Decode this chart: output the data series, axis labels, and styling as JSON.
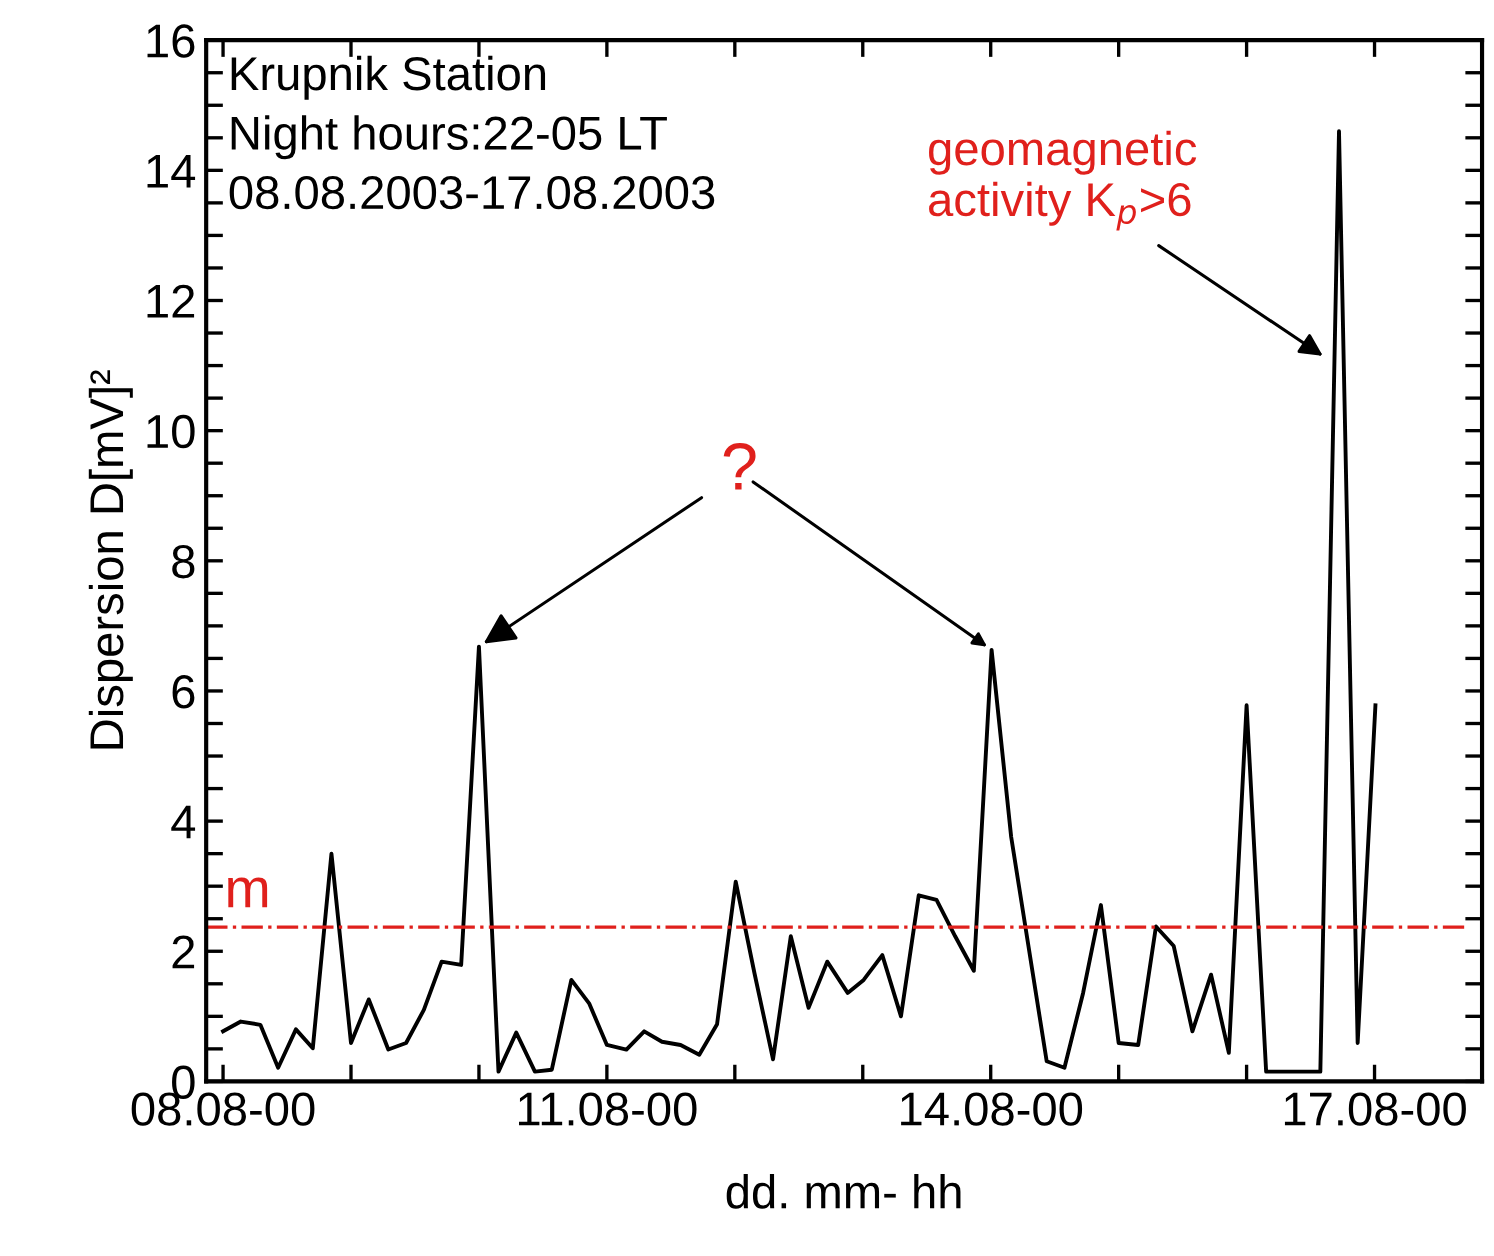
{
  "chart_data": {
    "type": "line",
    "xlabel": "dd. mm- hh",
    "ylabel": "Dispersion D[mV]²",
    "x": [
      "2003-08-08T00:00",
      "2003-08-08T03:20",
      "2003-08-08T07:00",
      "2003-08-08T10:20",
      "2003-08-08T13:40",
      "2003-08-08T16:50",
      "2003-08-08T20:20",
      "2003-08-09T00:00",
      "2003-08-09T03:20",
      "2003-08-09T07:00",
      "2003-08-09T10:20",
      "2003-08-09T13:40",
      "2003-08-09T17:00",
      "2003-08-09T20:40",
      "2003-08-10T00:00",
      "2003-08-10T03:40",
      "2003-08-10T07:00",
      "2003-08-10T10:30",
      "2003-08-10T13:40",
      "2003-08-10T17:20",
      "2003-08-10T20:40",
      "2003-08-11T00:00",
      "2003-08-11T03:40",
      "2003-08-11T07:00",
      "2003-08-11T10:20",
      "2003-08-11T13:50",
      "2003-08-11T17:20",
      "2003-08-11T20:40",
      "2003-08-12T00:10",
      "2003-08-12T03:40",
      "2003-08-12T07:10",
      "2003-08-12T10:30",
      "2003-08-12T13:50",
      "2003-08-12T17:20",
      "2003-08-12T21:10",
      "2003-08-13T00:10",
      "2003-08-13T03:40",
      "2003-08-13T07:10",
      "2003-08-13T10:30",
      "2003-08-13T13:50",
      "2003-08-13T17:20",
      "2003-08-13T20:50",
      "2003-08-14T00:10",
      "2003-08-14T03:50",
      "2003-08-14T10:30",
      "2003-08-14T13:50",
      "2003-08-14T17:20",
      "2003-08-14T20:40",
      "2003-08-15T00:00",
      "2003-08-15T03:40",
      "2003-08-15T07:00",
      "2003-08-15T10:20",
      "2003-08-15T13:50",
      "2003-08-15T17:20",
      "2003-08-15T20:40",
      "2003-08-16T00:00",
      "2003-08-16T03:40",
      "2003-08-16T08:40",
      "2003-08-16T13:50",
      "2003-08-16T17:20",
      "2003-08-16T20:50",
      "2003-08-17T00:10"
    ],
    "series": [
      {
        "color": "#000000",
        "values": [
          0.77,
          0.92,
          0.87,
          0.21,
          0.8,
          0.51,
          3.5,
          0.59,
          1.26,
          0.49,
          0.59,
          1.1,
          1.84,
          1.79,
          6.68,
          0.15,
          0.75,
          0.15,
          0.18,
          1.56,
          1.2,
          0.56,
          0.49,
          0.77,
          0.61,
          0.56,
          0.41,
          0.88,
          3.07,
          1.67,
          0.34,
          2.23,
          1.13,
          1.84,
          1.36,
          1.56,
          1.94,
          1.0,
          2.86,
          2.79,
          2.23,
          1.7,
          6.63,
          3.76,
          0.31,
          0.21,
          1.36,
          2.71,
          0.59,
          0.56,
          2.38,
          2.08,
          0.77,
          1.64,
          0.44,
          5.78,
          0.15,
          0.15,
          0.15,
          14.6,
          0.59,
          5.78
        ]
      }
    ],
    "xlim": [
      "2003-08-07T20:50",
      "2003-08-17T20:10"
    ],
    "xticks": [
      {
        "value": "2003-08-08T00:00",
        "label": "08.08-00"
      },
      {
        "value": "2003-08-09T00:00",
        "label": null
      },
      {
        "value": "2003-08-10T00:00",
        "label": null
      },
      {
        "value": "2003-08-11T00:00",
        "label": "11.08-00"
      },
      {
        "value": "2003-08-12T00:00",
        "label": null
      },
      {
        "value": "2003-08-13T00:00",
        "label": null
      },
      {
        "value": "2003-08-14T00:00",
        "label": "14.08-00"
      },
      {
        "value": "2003-08-15T00:00",
        "label": null
      },
      {
        "value": "2003-08-16T00:00",
        "label": null
      },
      {
        "value": "2003-08-17T00:00",
        "label": "17.08-00"
      }
    ],
    "ylim": [
      0,
      16
    ],
    "yticks": [
      0,
      {
        "value": 0.5,
        "label": null
      },
      {
        "value": 1,
        "label": null
      },
      {
        "value": 1.5,
        "label": null
      },
      2,
      {
        "value": 2.5,
        "label": null
      },
      {
        "value": 3,
        "label": null
      },
      {
        "value": 3.5,
        "label": null
      },
      4,
      {
        "value": 4.5,
        "label": null
      },
      {
        "value": 5,
        "label": null
      },
      {
        "value": 5.5,
        "label": null
      },
      6,
      {
        "value": 6.5,
        "label": null
      },
      {
        "value": 7,
        "label": null
      },
      {
        "value": 7.5,
        "label": null
      },
      8,
      {
        "value": 8.5,
        "label": null
      },
      {
        "value": 9,
        "label": null
      },
      {
        "value": 9.5,
        "label": null
      },
      10,
      {
        "value": 10.5,
        "label": null
      },
      {
        "value": 11,
        "label": null
      },
      {
        "value": 11.5,
        "label": null
      },
      12,
      {
        "value": 12.5,
        "label": null
      },
      {
        "value": 13,
        "label": null
      },
      {
        "value": 13.5,
        "label": null
      },
      14,
      {
        "value": 14.5,
        "label": null
      },
      {
        "value": 15,
        "label": null
      },
      {
        "value": 15.5,
        "label": null
      },
      16
    ],
    "ref_lines": [
      {
        "axis": "y",
        "value": 2.37,
        "label": "m",
        "color": "#e0201c",
        "line_style": "dashdot"
      }
    ],
    "annotations": [
      "Krupnik Station\nNight hours:22-05 LT\n08.08.2003-17.08.2003",
      {
        "text": "?",
        "x": "2003-08-10T00:00",
        "y": 6.68
      },
      {
        "text": "geomagnetic\nactivity K$_{p}$>6",
        "x": "2003-08-16T15:10",
        "y": 11.1
      }
    ],
    "grid": false,
    "legend": false,
    "marker": "none",
    "line_style": "solid"
  }
}
